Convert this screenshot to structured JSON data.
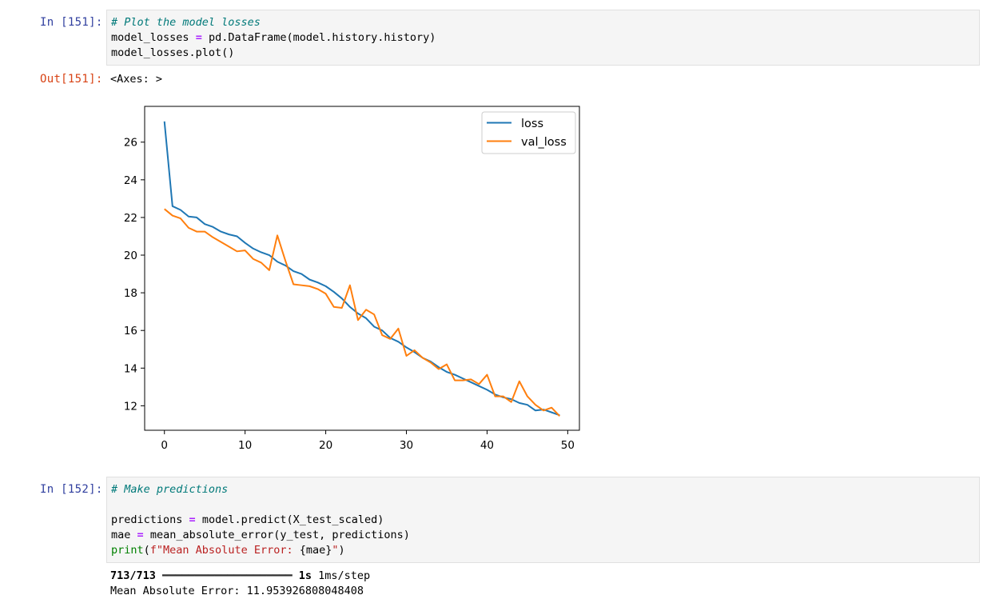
{
  "cells": [
    {
      "in_prompt": "In [151]:",
      "code": {
        "comment": "# Plot the model losses",
        "line2_var": "model_losses",
        "line2_op": "=",
        "line2_rest": "pd.DataFrame(model.history.history)",
        "line3": "model_losses.plot()"
      },
      "out_prompt": "Out[151]:",
      "out_text": "<Axes: >"
    },
    {
      "in_prompt": "In [152]:",
      "code": {
        "comment": "# Make predictions",
        "line3_var": "predictions",
        "line3_op": "=",
        "line3_rest": "model.predict(X_test_scaled)",
        "line4_var": "mae",
        "line4_op": "=",
        "line4_rest": "mean_absolute_error(y_test, predictions)",
        "line5_fn": "print",
        "line5_open": "(",
        "line5_str": "f\"Mean Absolute Error: ",
        "line5_interp": "{mae}",
        "line5_strend": "\"",
        "line5_close": ")"
      },
      "output": {
        "progress_count": "713/713",
        "progress_bar": "━━━━━━━━━━━━━━━━━━━━",
        "progress_time": "1s",
        "progress_step": "1ms/step",
        "result": "Mean Absolute Error: 11.953926808048408"
      }
    }
  ],
  "chart_data": {
    "type": "line",
    "x": [
      0,
      1,
      2,
      3,
      4,
      5,
      6,
      7,
      8,
      9,
      10,
      11,
      12,
      13,
      14,
      15,
      16,
      17,
      18,
      19,
      20,
      21,
      22,
      23,
      24,
      25,
      26,
      27,
      28,
      29,
      30,
      31,
      32,
      33,
      34,
      35,
      36,
      37,
      38,
      39,
      40,
      41,
      42,
      43,
      44,
      45,
      46,
      47,
      48,
      49
    ],
    "series": [
      {
        "name": "loss",
        "color": "#1f77b4",
        "values": [
          27.1,
          22.6,
          22.4,
          22.05,
          22.0,
          21.65,
          21.5,
          21.25,
          21.1,
          21.0,
          20.65,
          20.35,
          20.15,
          20.0,
          19.65,
          19.45,
          19.15,
          19.0,
          18.7,
          18.55,
          18.35,
          18.05,
          17.7,
          17.25,
          16.9,
          16.65,
          16.2,
          16.0,
          15.6,
          15.4,
          15.1,
          14.85,
          14.55,
          14.35,
          14.05,
          13.8,
          13.65,
          13.45,
          13.25,
          13.05,
          12.85,
          12.6,
          12.45,
          12.35,
          12.15,
          12.05,
          11.75,
          11.8,
          11.65,
          11.5
        ]
      },
      {
        "name": "val_loss",
        "color": "#ff7f0e",
        "values": [
          22.45,
          22.1,
          21.95,
          21.45,
          21.25,
          21.25,
          20.95,
          20.7,
          20.45,
          20.2,
          20.25,
          19.8,
          19.6,
          19.2,
          21.05,
          19.7,
          18.45,
          18.4,
          18.35,
          18.2,
          17.95,
          17.25,
          17.2,
          18.4,
          16.55,
          17.1,
          16.85,
          15.75,
          15.55,
          16.1,
          14.65,
          14.95,
          14.55,
          14.3,
          13.95,
          14.2,
          13.35,
          13.35,
          13.4,
          13.15,
          13.65,
          12.5,
          12.5,
          12.2,
          13.3,
          12.5,
          12.05,
          11.75,
          11.9,
          11.45
        ]
      }
    ],
    "xticks": [
      0,
      10,
      20,
      30,
      40,
      50
    ],
    "yticks": [
      12,
      14,
      16,
      18,
      20,
      22,
      24,
      26
    ],
    "xlim": [
      -2.45,
      51.45
    ],
    "ylim": [
      10.7,
      27.9
    ],
    "legend_position": "upper right",
    "grid": false
  }
}
